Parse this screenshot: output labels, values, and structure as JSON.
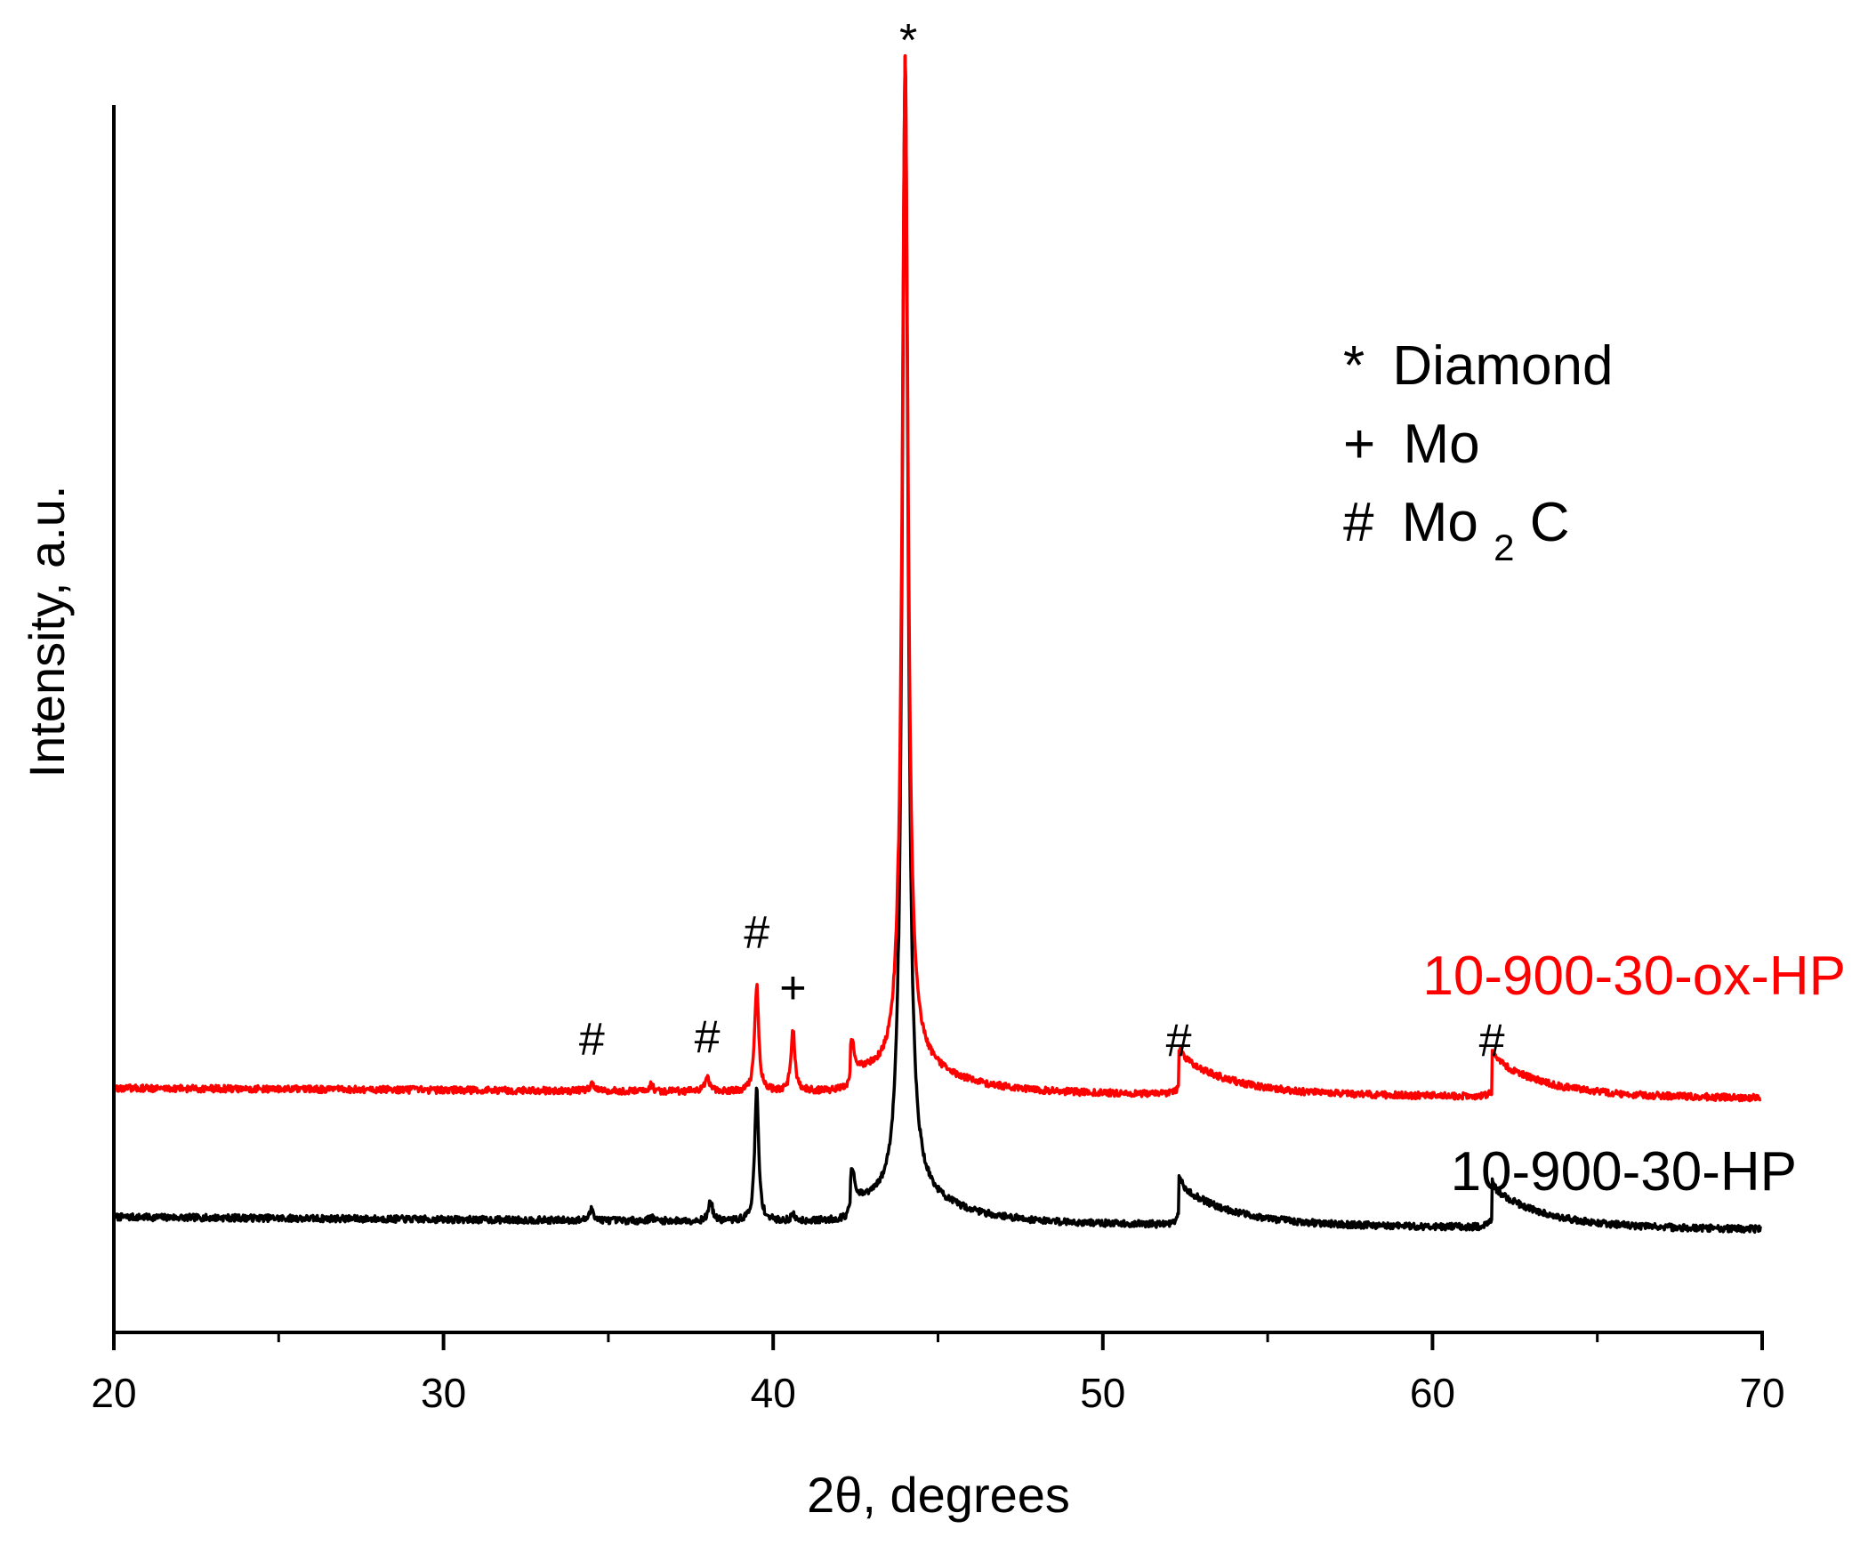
{
  "chart_data": {
    "type": "line",
    "xlabel": "2θ, degrees",
    "ylabel": "Intensity, a.u.",
    "xlim": [
      20,
      70
    ],
    "ylim": [
      0,
      100
    ],
    "xticks": [
      20,
      30,
      40,
      50,
      60,
      70
    ],
    "xticks_minor": [
      25,
      35,
      45,
      55,
      65
    ],
    "y_ticks_shown": false,
    "grid": false,
    "legend": {
      "placement": "top-right",
      "entries": [
        {
          "symbol": "*",
          "text": "Diamond"
        },
        {
          "symbol": "+",
          "text": "Mo"
        },
        {
          "symbol": "#",
          "text": "Mo",
          "subscript": "2",
          "suffix": "C"
        }
      ]
    },
    "series": [
      {
        "name": "10-900-30-HP",
        "color": "#000000",
        "baseline": 9.4,
        "end_value": 8.4,
        "peaks": [
          {
            "x": 34.5,
            "h": 1.0
          },
          {
            "x": 36.3,
            "h": 0.3
          },
          {
            "x": 38.1,
            "h": 1.7
          },
          {
            "x": 39.5,
            "h": 10.8
          },
          {
            "x": 40.6,
            "h": 0.5
          },
          {
            "x": 42.4,
            "h": 2.5
          },
          {
            "x": 44.0,
            "h": 93.0
          },
          {
            "x": 52.3,
            "h": 0.7
          },
          {
            "x": 61.8,
            "h": 0.5
          }
        ]
      },
      {
        "name": "10-900-30-ox-HP",
        "color": "#ff0000",
        "baseline": 19.9,
        "end_value": 19.1,
        "peaks": [
          {
            "x": 34.5,
            "h": 0.7
          },
          {
            "x": 36.3,
            "h": 0.5
          },
          {
            "x": 38.0,
            "h": 1.2
          },
          {
            "x": 39.5,
            "h": 8.7
          },
          {
            "x": 40.6,
            "h": 5.1
          },
          {
            "x": 42.4,
            "h": 2.5
          },
          {
            "x": 44.0,
            "h": 82.0
          },
          {
            "x": 52.3,
            "h": 0.5
          },
          {
            "x": 61.8,
            "h": 0.4
          }
        ]
      }
    ],
    "annotations": [
      {
        "text": "*",
        "x": 44.1,
        "y": 104.0
      },
      {
        "text": "#",
        "x": 34.5,
        "y": 22.6
      },
      {
        "text": "#",
        "x": 38.0,
        "y": 22.8
      },
      {
        "text": "#",
        "x": 39.5,
        "y": 31.3
      },
      {
        "text": "+",
        "x": 40.6,
        "y": 26.8
      },
      {
        "text": "#",
        "x": 52.3,
        "y": 22.5
      },
      {
        "text": "#",
        "x": 61.8,
        "y": 22.5
      }
    ]
  }
}
